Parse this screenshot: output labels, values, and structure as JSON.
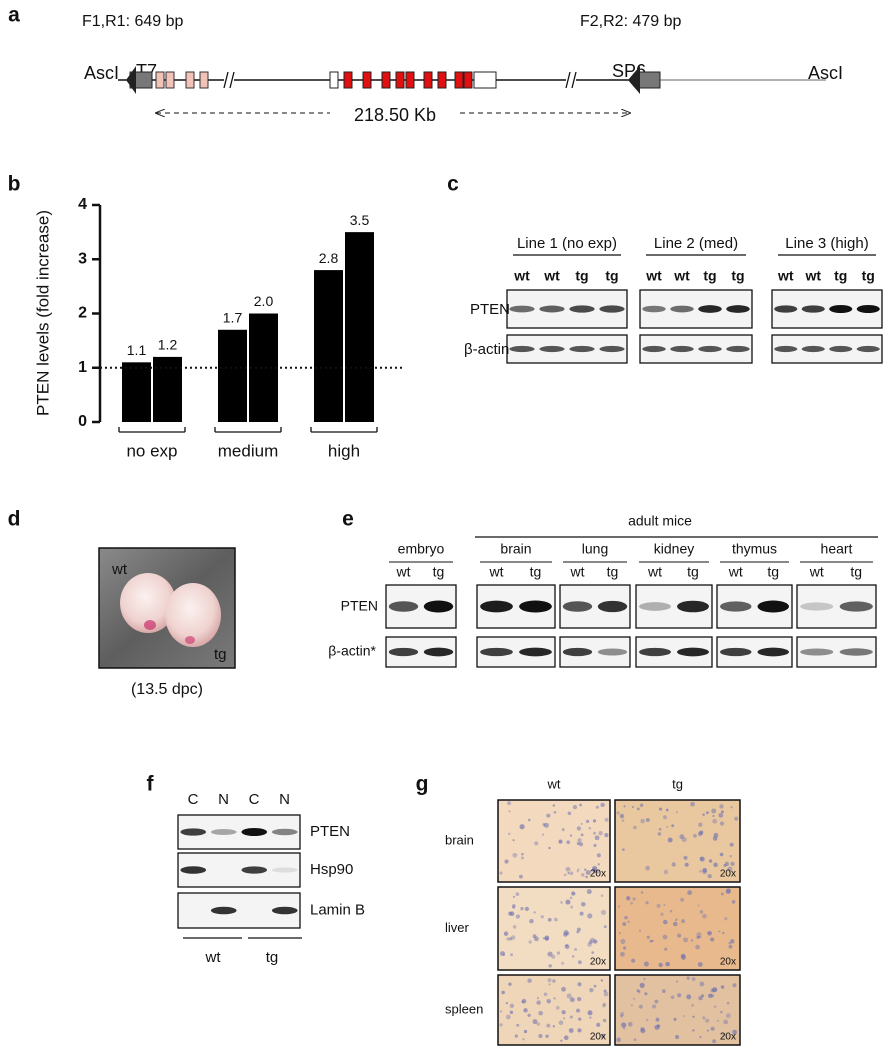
{
  "panel_labels": [
    "a",
    "b",
    "c",
    "d",
    "e",
    "f",
    "g"
  ],
  "panel_a": {
    "primer_left": "F1,R1: 649 bp",
    "primer_right": "F2,R2: 479 bp",
    "site_left": "AscI",
    "promoter_left": "T7",
    "promoter_right": "SP6",
    "site_right": "AscI",
    "length": "218.50 Kb"
  },
  "chart_data": {
    "type": "bar",
    "ylabel": "PTEN levels (fold increase)",
    "categories": [
      "no exp",
      "medium",
      "high"
    ],
    "series": [
      {
        "color": "#000000",
        "values": [
          1.1,
          1.7,
          2.8
        ],
        "value_labels": [
          "1.1",
          "1.7",
          "2.8"
        ]
      },
      {
        "color": "#000000",
        "values": [
          1.2,
          2.0,
          3.5
        ],
        "value_labels": [
          "1.2",
          "2.0",
          "3.5"
        ]
      }
    ],
    "ylim": [
      0,
      4
    ],
    "yticks": [
      0,
      1,
      2,
      3,
      4
    ],
    "reference_line": 1
  },
  "panel_c": {
    "lines": [
      "Line 1 (no exp)",
      "Line 2 (med)",
      "Line 3 (high)"
    ],
    "lanes": [
      "wt",
      "wt",
      "tg",
      "tg"
    ],
    "rows": [
      "PTEN",
      "β-actin"
    ]
  },
  "panel_d": {
    "label_wt": "wt",
    "label_tg": "tg",
    "caption": "(13.5 dpc)"
  },
  "panel_e": {
    "group": "adult mice",
    "tissues": [
      "embryo",
      "brain",
      "lung",
      "kidney",
      "thymus",
      "heart"
    ],
    "lanes": [
      "wt",
      "tg"
    ],
    "rows": [
      "PTEN",
      "β-actin*"
    ]
  },
  "panel_f": {
    "lanes": [
      "C",
      "N",
      "C",
      "N"
    ],
    "rows": [
      "PTEN",
      "Hsp90",
      "Lamin B"
    ],
    "groups": [
      "wt",
      "tg"
    ]
  },
  "panel_g": {
    "columns": [
      "wt",
      "tg"
    ],
    "rows": [
      "brain",
      "liver",
      "spleen"
    ],
    "magnification": "20x"
  }
}
